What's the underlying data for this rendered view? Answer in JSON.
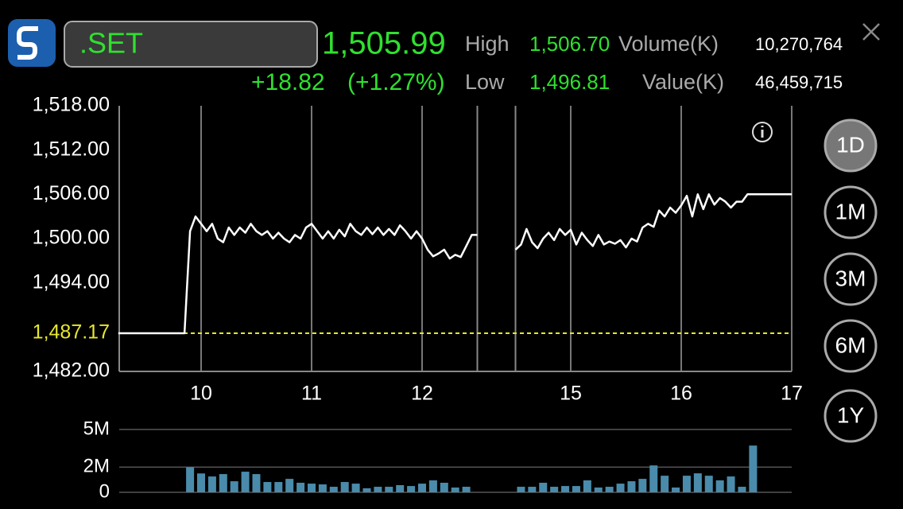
{
  "header": {
    "symbol": ".SET",
    "last": "1,505.99",
    "change": "+18.82",
    "change_pct": "(+1.27%)",
    "high_label": "High",
    "high": "1,506.70",
    "low_label": "Low",
    "low": "1,496.81",
    "volume_label": "Volume(K)",
    "volume": "10,270,764",
    "value_label": "Value(K)",
    "value": "46,459,715"
  },
  "periods": [
    "1D",
    "1M",
    "3M",
    "6M",
    "1Y"
  ],
  "chart_data": [
    {
      "type": "line",
      "session_break": [
        12.5,
        14.5
      ],
      "xlim": [
        9.25,
        17
      ],
      "xticks": [
        10,
        11,
        12,
        15,
        16,
        17
      ],
      "ylim": [
        1482,
        1518
      ],
      "yticks": [
        {
          "value": 1482,
          "label": "1,482.00"
        },
        {
          "value": 1494,
          "label": "1,494.00"
        },
        {
          "value": 1500,
          "label": "1,500.00"
        },
        {
          "value": 1506,
          "label": "1,506.00"
        },
        {
          "value": 1512,
          "label": "1,512.00"
        },
        {
          "value": 1518,
          "label": "1,518.00"
        }
      ],
      "reference": {
        "value": 1487.17,
        "label": "1,487.17",
        "color": "#e6e62e"
      },
      "series": [
        {
          "color": "#ffffff",
          "x": [
            9.25,
            9.85,
            9.9,
            9.95,
            10,
            10.05,
            10.1,
            10.15,
            10.2,
            10.25,
            10.3,
            10.35,
            10.4,
            10.45,
            10.5,
            10.55,
            10.6,
            10.65,
            10.7,
            10.75,
            10.8,
            10.85,
            10.9,
            10.95,
            11,
            11.05,
            11.1,
            11.15,
            11.2,
            11.25,
            11.3,
            11.35,
            11.4,
            11.45,
            11.5,
            11.55,
            11.6,
            11.65,
            11.7,
            11.75,
            11.8,
            11.85,
            11.9,
            11.95,
            12,
            12.05,
            12.1,
            12.15,
            12.2,
            12.25,
            12.3,
            12.35,
            12.4,
            12.45,
            12.5,
            null,
            14.5,
            14.55,
            14.6,
            14.65,
            14.7,
            14.75,
            14.8,
            14.85,
            14.9,
            14.95,
            15,
            15.05,
            15.1,
            15.15,
            15.2,
            15.25,
            15.3,
            15.35,
            15.4,
            15.45,
            15.5,
            15.55,
            15.6,
            15.65,
            15.7,
            15.75,
            15.8,
            15.85,
            15.9,
            15.95,
            16,
            16.05,
            16.1,
            16.15,
            16.2,
            16.25,
            16.3,
            16.35,
            16.4,
            16.45,
            16.5,
            16.55,
            16.6,
            16.65,
            16.8,
            17
          ],
          "values": [
            1487.17,
            1487.17,
            1501,
            1503,
            1502,
            1501,
            1502,
            1500,
            1499.5,
            1501.5,
            1500.5,
            1501.5,
            1500.8,
            1502,
            1501,
            1500.5,
            1501,
            1500,
            1500.8,
            1500,
            1499.5,
            1500.5,
            1500,
            1501.5,
            1502,
            1501,
            1500,
            1501,
            1500,
            1501.2,
            1500.3,
            1502,
            1501,
            1500.5,
            1501.5,
            1500.6,
            1501.5,
            1500.5,
            1501.3,
            1500.5,
            1501.8,
            1501,
            1500,
            1501,
            1500,
            1498.5,
            1497.6,
            1498,
            1498.5,
            1497.3,
            1497.8,
            1497.5,
            1499,
            1500.5,
            1500.5,
            null,
            1498.5,
            1499.2,
            1501.3,
            1499.5,
            1498.7,
            1500,
            1500.8,
            1499.8,
            1501.3,
            1500.5,
            1501.2,
            1499.2,
            1500.8,
            1499.8,
            1499,
            1500.5,
            1499.2,
            1499.6,
            1499.3,
            1499.8,
            1498.8,
            1500,
            1499.6,
            1501.5,
            1502,
            1501.6,
            1503.8,
            1503,
            1504.2,
            1503.5,
            1504.5,
            1505.8,
            1503,
            1506,
            1504,
            1506,
            1504.6,
            1505.5,
            1505,
            1504.2,
            1505,
            1505,
            1506,
            1506,
            1506,
            1506
          ]
        }
      ]
    },
    {
      "type": "bar",
      "session_break": [
        12.5,
        14.5
      ],
      "ylim": [
        0,
        5000000
      ],
      "yticks": [
        0,
        {
          "value": 2000000,
          "label": "2M"
        },
        {
          "value": 5000000,
          "label": "5M"
        }
      ],
      "series": [
        {
          "color": "#4a8bab",
          "x": [
            9.9,
            10,
            10.1,
            10.2,
            10.3,
            10.4,
            10.5,
            10.6,
            10.7,
            10.8,
            10.9,
            11,
            11.1,
            11.2,
            11.3,
            11.4,
            11.5,
            11.6,
            11.7,
            11.8,
            11.9,
            12,
            12.1,
            12.2,
            12.3,
            12.4,
            14.55,
            14.65,
            14.75,
            14.85,
            14.95,
            15.05,
            15.15,
            15.25,
            15.35,
            15.45,
            15.55,
            15.65,
            15.75,
            15.85,
            15.95,
            16.05,
            16.15,
            16.25,
            16.35,
            16.45,
            16.55,
            16.65
          ],
          "values": [
            2000000,
            1500000,
            1260000,
            1450000,
            880000,
            1640000,
            1450000,
            820000,
            820000,
            1070000,
            760000,
            690000,
            630000,
            440000,
            820000,
            690000,
            320000,
            440000,
            440000,
            570000,
            500000,
            690000,
            950000,
            760000,
            380000,
            440000,
            440000,
            440000,
            760000,
            440000,
            500000,
            500000,
            950000,
            380000,
            440000,
            690000,
            880000,
            1070000,
            2140000,
            1320000,
            380000,
            1320000,
            1510000,
            1320000,
            950000,
            1260000,
            440000,
            3720000
          ]
        }
      ]
    }
  ]
}
